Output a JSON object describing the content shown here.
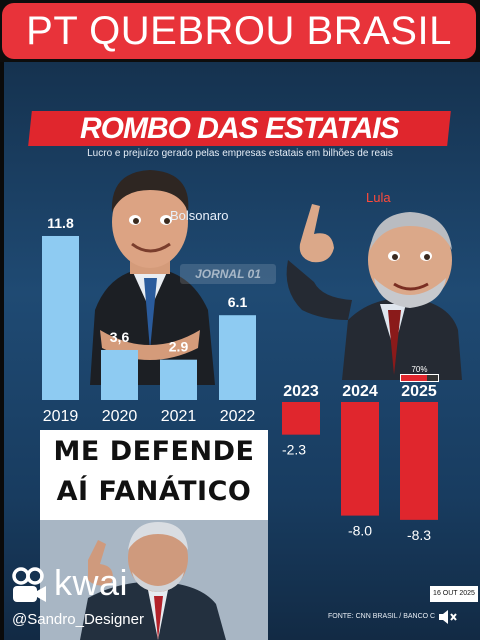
{
  "banner": {
    "text": "PT QUEBROU BRASIL"
  },
  "headline": "ROMBO DAS ESTATAIS",
  "subtitle": "Lucro e prejuízo gerado pelas empresas estatais em bilhões de reais",
  "labels": {
    "bolsonaro": "Bolsonaro",
    "lula": "Lula"
  },
  "watermark": "JORNAL 01",
  "chart_data": {
    "type": "bar",
    "title": "ROMBO DAS ESTATAIS",
    "subtitle": "Lucro e prejuízo gerado pelas empresas estatais em bilhões de reais",
    "categories": [
      "2019",
      "2020",
      "2021",
      "2022",
      "2023",
      "2024",
      "2025"
    ],
    "series": [
      {
        "name": "Bolsonaro",
        "color": "#8ecbf2",
        "values": [
          11.8,
          3.6,
          2.9,
          6.1,
          null,
          null,
          null
        ],
        "value_labels": [
          "11.8",
          "3,6",
          "2.9",
          "6.1"
        ]
      },
      {
        "name": "Lula",
        "color": "#e0262d",
        "values": [
          null,
          null,
          null,
          null,
          -2.3,
          -8.0,
          -8.3
        ],
        "value_labels": [
          "-2.3",
          "-8.0",
          "-8.3"
        ]
      }
    ],
    "annotations": [
      {
        "category": "2025",
        "text": "70%",
        "progress": 0.7
      }
    ]
  },
  "poster": {
    "line1": "ME DEFENDE",
    "line2": "AÍ FANÁTICO"
  },
  "kwai": {
    "brand": "kwai",
    "user": "@Sandro_Designer"
  },
  "date_badge": "16 OUT 2025",
  "source": "FONTE: CNN BRASIL / BANCO C",
  "icons": {
    "kwai_logo": "kwai-camera-icon",
    "mute": "speaker-muted-icon"
  }
}
